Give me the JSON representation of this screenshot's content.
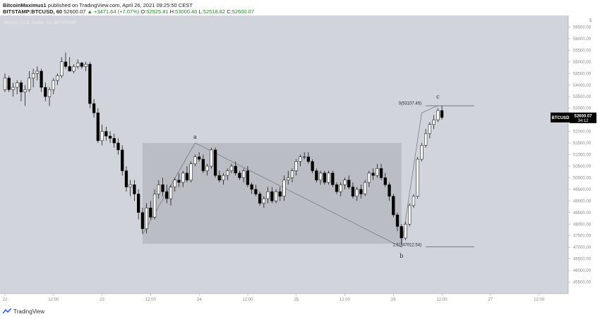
{
  "header": {
    "author": "BitcoinMaximus1",
    "published_text": "published on TradingView.com, April 26, 2021 09:25:50 CEST",
    "symbol": "BITSTAMP:BTCUSD, 60",
    "last_price": "52600.07",
    "change": "▲ +3471.64 (+7.07%)",
    "o_label": "O:",
    "o_value": "52925.81",
    "h_label": "H:",
    "h_value": "53000.40",
    "l_label": "L:",
    "l_value": "52518.82",
    "c_label": "C:",
    "c_value": "52600.07"
  },
  "footer": {
    "brand": "TradingView"
  },
  "colors": {
    "background": "#d2d4dc",
    "box": "#a8aab0",
    "candle_up": "#ffffff",
    "candle_down": "#000000",
    "text": "#555555"
  },
  "chart_data": {
    "type": "candlestick",
    "title": "Bitcoin / U.S. Dollar, 1h, BITSTAMP",
    "ylim": [
      45000,
      57000
    ],
    "y_ticks": [
      "56500.00",
      "56000.00",
      "55500.00",
      "55000.00",
      "54500.00",
      "54000.00",
      "53500.00",
      "53000.00",
      "52500.00",
      "52000.00",
      "51500.00",
      "51000.00",
      "50500.00",
      "50000.00",
      "49500.00",
      "49000.00",
      "48500.00",
      "48000.00",
      "47500.00",
      "47000.00",
      "46500.00",
      "46000.00",
      "45500.00"
    ],
    "y_tick_values": [
      56500,
      56000,
      55500,
      55000,
      54500,
      54000,
      53500,
      53000,
      52500,
      52000,
      51500,
      51000,
      50500,
      50000,
      49500,
      49000,
      48500,
      48000,
      47500,
      47000,
      46500,
      46000,
      45500
    ],
    "x_ticks": [
      "22",
      "12:00",
      "23",
      "12:00",
      "24",
      "12:00",
      "25",
      "12:00",
      "26",
      "12:00",
      "27",
      "12:00"
    ],
    "x_tick_hours": [
      0,
      12,
      24,
      36,
      48,
      60,
      72,
      84,
      96,
      108,
      120,
      132
    ],
    "x_range_hours": [
      0,
      138
    ],
    "currency_tag": "$",
    "price_label": {
      "symbol": "BTCUSD",
      "value": "52600.07",
      "countdown": "34:12",
      "price": 52600.07
    },
    "candles": [
      [
        0,
        53800,
        54500,
        53700,
        54300
      ],
      [
        1,
        54300,
        54400,
        53700,
        53800
      ],
      [
        2,
        53800,
        54100,
        53500,
        53900
      ],
      [
        3,
        53900,
        54200,
        53600,
        54100
      ],
      [
        4,
        54100,
        54200,
        53300,
        53700
      ],
      [
        5,
        53700,
        54000,
        53100,
        53800
      ],
      [
        6,
        53800,
        54600,
        53700,
        54300
      ],
      [
        7,
        54300,
        54700,
        53900,
        54500
      ],
      [
        8,
        54500,
        54800,
        54200,
        54600
      ],
      [
        9,
        54600,
        54700,
        53700,
        53900
      ],
      [
        10,
        53900,
        54100,
        53300,
        53500
      ],
      [
        11,
        53500,
        53900,
        53100,
        53800
      ],
      [
        12,
        53800,
        54300,
        53600,
        54200
      ],
      [
        13,
        54200,
        54500,
        54000,
        54400
      ],
      [
        14,
        54400,
        55200,
        54300,
        55000
      ],
      [
        15,
        55000,
        55400,
        54700,
        54800
      ],
      [
        16,
        54800,
        55200,
        54600,
        54600
      ],
      [
        17,
        54600,
        54900,
        54500,
        54800
      ],
      [
        18,
        54800,
        55100,
        54700,
        54950
      ],
      [
        19,
        54950,
        55000,
        54700,
        54800
      ],
      [
        20,
        54800,
        55000,
        54600,
        54900
      ],
      [
        21,
        54900,
        55000,
        53000,
        53200
      ],
      [
        22,
        53200,
        53400,
        52600,
        52800
      ],
      [
        23,
        52800,
        53000,
        51500,
        51600
      ],
      [
        24,
        51600,
        52300,
        51400,
        52000
      ],
      [
        25,
        52000,
        52200,
        51600,
        51800
      ],
      [
        26,
        51800,
        52000,
        51500,
        51700
      ],
      [
        27,
        51700,
        51900,
        51300,
        51500
      ],
      [
        28,
        51500,
        51700,
        51000,
        51200
      ],
      [
        29,
        51200,
        51400,
        50100,
        50300
      ],
      [
        30,
        50300,
        50500,
        49400,
        49600
      ],
      [
        31,
        49600,
        49900,
        49200,
        49700
      ],
      [
        32,
        49700,
        49900,
        49000,
        49300
      ],
      [
        33,
        49300,
        49500,
        48200,
        48500
      ],
      [
        34,
        48500,
        48700,
        47600,
        47800
      ],
      [
        35,
        47800,
        48900,
        47600,
        48700
      ],
      [
        36,
        48700,
        49000,
        48200,
        48300
      ],
      [
        37,
        48300,
        49500,
        48200,
        49300
      ],
      [
        38,
        49300,
        49900,
        49100,
        49700
      ],
      [
        39,
        49700,
        50000,
        49200,
        49400
      ],
      [
        40,
        49400,
        49700,
        48900,
        49100
      ],
      [
        41,
        49100,
        49700,
        48800,
        49600
      ],
      [
        42,
        49600,
        50000,
        49400,
        49900
      ],
      [
        43,
        49900,
        50200,
        49600,
        49800
      ],
      [
        44,
        49800,
        50300,
        49600,
        50200
      ],
      [
        45,
        50200,
        50500,
        49800,
        49900
      ],
      [
        46,
        49900,
        50700,
        49800,
        50600
      ],
      [
        47,
        50600,
        51000,
        50500,
        50900
      ],
      [
        48,
        50900,
        51100,
        50700,
        50800
      ],
      [
        49,
        50800,
        51000,
        50200,
        50300
      ],
      [
        50,
        50300,
        50600,
        50100,
        50500
      ],
      [
        51,
        50500,
        51300,
        50400,
        51200
      ],
      [
        52,
        51200,
        51300,
        50000,
        50100
      ],
      [
        53,
        50100,
        50300,
        49800,
        49900
      ],
      [
        54,
        49900,
        50200,
        49700,
        50100
      ],
      [
        55,
        50100,
        50400,
        49900,
        50300
      ],
      [
        56,
        50300,
        50600,
        50200,
        50500
      ],
      [
        57,
        50500,
        50700,
        50100,
        50200
      ],
      [
        58,
        50200,
        50300,
        49900,
        50000
      ],
      [
        59,
        50000,
        50400,
        49800,
        50300
      ],
      [
        60,
        50300,
        50500,
        49600,
        49700
      ],
      [
        61,
        49700,
        49800,
        49300,
        49500
      ],
      [
        62,
        49500,
        49700,
        49200,
        49300
      ],
      [
        63,
        49300,
        49400,
        48800,
        48900
      ],
      [
        64,
        48900,
        49200,
        48700,
        49100
      ],
      [
        65,
        49100,
        49600,
        48900,
        49400
      ],
      [
        66,
        49400,
        49600,
        48900,
        49000
      ],
      [
        67,
        49000,
        49500,
        48900,
        49400
      ],
      [
        68,
        49400,
        49600,
        49000,
        49200
      ],
      [
        69,
        49200,
        50100,
        49000,
        49900
      ],
      [
        70,
        49900,
        50300,
        49700,
        50000
      ],
      [
        71,
        50000,
        50400,
        49800,
        50300
      ],
      [
        72,
        50300,
        50800,
        50100,
        50700
      ],
      [
        73,
        50700,
        51000,
        50500,
        50900
      ],
      [
        74,
        50900,
        51100,
        50800,
        50900
      ],
      [
        75,
        50900,
        51100,
        50600,
        50700
      ],
      [
        76,
        50700,
        50800,
        50200,
        50300
      ],
      [
        77,
        50300,
        50400,
        49800,
        49900
      ],
      [
        78,
        49900,
        50300,
        49700,
        50200
      ],
      [
        79,
        50200,
        50300,
        49700,
        49800
      ],
      [
        80,
        49800,
        50300,
        49700,
        50200
      ],
      [
        81,
        50200,
        50300,
        49600,
        49700
      ],
      [
        82,
        49700,
        49800,
        49300,
        49400
      ],
      [
        83,
        49400,
        49800,
        49200,
        49700
      ],
      [
        84,
        49700,
        50000,
        49500,
        49900
      ],
      [
        85,
        49900,
        50100,
        49500,
        49600
      ],
      [
        86,
        49600,
        49800,
        49100,
        49200
      ],
      [
        87,
        49200,
        49600,
        49000,
        49500
      ],
      [
        88,
        49500,
        49700,
        49100,
        49300
      ],
      [
        89,
        49300,
        49900,
        49200,
        49800
      ],
      [
        90,
        49800,
        50300,
        49600,
        50200
      ],
      [
        91,
        50200,
        50400,
        49900,
        50100
      ],
      [
        92,
        50100,
        50600,
        50000,
        50400
      ],
      [
        93,
        50400,
        50600,
        49900,
        50000
      ],
      [
        94,
        50000,
        50200,
        49600,
        49700
      ],
      [
        95,
        49700,
        49800,
        49000,
        49200
      ],
      [
        96,
        49200,
        49300,
        48300,
        48400
      ],
      [
        97,
        48400,
        48500,
        47700,
        47900
      ],
      [
        98,
        47900,
        48000,
        47100,
        47400
      ],
      [
        99,
        47400,
        48100,
        47300,
        48000
      ],
      [
        100,
        48000,
        48900,
        47900,
        48800
      ],
      [
        101,
        48800,
        49300,
        48700,
        49200
      ],
      [
        102,
        49200,
        50900,
        49100,
        50800
      ],
      [
        103,
        50800,
        51500,
        50700,
        51400
      ],
      [
        104,
        51400,
        52100,
        51300,
        51900
      ],
      [
        105,
        51900,
        52400,
        51700,
        52300
      ],
      [
        106,
        52300,
        52700,
        52100,
        52500
      ],
      [
        107,
        52500,
        53000,
        52400,
        52900
      ],
      [
        108,
        52900,
        53100,
        52500,
        52600
      ]
    ],
    "annotations": {
      "labels": [
        "a",
        "b",
        "c"
      ],
      "fib_levels": [
        "0(53107.45)",
        "1.61(47012.54)"
      ],
      "fib_prices": [
        53107.45,
        47012.54
      ],
      "wave_prices": [
        47550,
        51500,
        47012.54,
        52800,
        53107.45
      ],
      "wave_hours": [
        34,
        47,
        98,
        103,
        107
      ],
      "box": {
        "price_top": 51500,
        "price_bottom": 47150,
        "hour_start": 34,
        "hour_end": 98
      }
    }
  }
}
